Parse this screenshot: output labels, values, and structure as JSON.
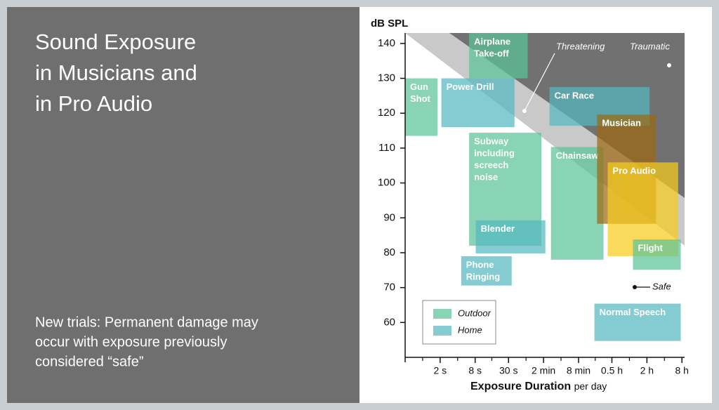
{
  "slide": {
    "title_lines": [
      "Sound Exposure",
      "in Musicians and",
      "in Pro Audio"
    ],
    "note_lines": [
      "New trials: Permanent damage may",
      "occur with exposure previously",
      "considered “safe”"
    ]
  },
  "chart_data": {
    "type": "range",
    "y_label": "dB SPL",
    "x_label": "Exposure Duration",
    "x_label_suffix": "per day",
    "xlim": [
      0.5,
      32000
    ],
    "x_log": true,
    "ylim": [
      50,
      143
    ],
    "yticks": [
      60,
      70,
      80,
      90,
      100,
      110,
      120,
      130,
      140
    ],
    "xticks": [
      {
        "value": 2,
        "label": "2 s"
      },
      {
        "value": 8,
        "label": "8 s"
      },
      {
        "value": 30,
        "label": "30 s"
      },
      {
        "value": 120,
        "label": "2 min"
      },
      {
        "value": 480,
        "label": "8 min"
      },
      {
        "value": 1800,
        "label": "0.5 h"
      },
      {
        "value": 7200,
        "label": "2 h"
      },
      {
        "value": 28800,
        "label": "8 h"
      }
    ],
    "groups": [
      {
        "name": "Outdoor",
        "color": "#5cc497"
      },
      {
        "name": "Home",
        "color": "#55b9bf"
      }
    ],
    "legend": "lower-left",
    "annotations": {
      "threatening": "Threatening",
      "traumatic": "Traumatic",
      "safe": "Safe"
    },
    "boxes": [
      {
        "label": [
          "Gun",
          "Shot"
        ],
        "group": 0,
        "x": [
          0.5,
          1.8
        ],
        "y": [
          113.5,
          130
        ]
      },
      {
        "label": [
          "Airplane",
          "Take-off"
        ],
        "group": 0,
        "x": [
          6.3,
          64
        ],
        "y": [
          130,
          143
        ]
      },
      {
        "label": [
          "Power Drill"
        ],
        "group": 1,
        "x": [
          2.1,
          38
        ],
        "y": [
          116,
          130
        ]
      },
      {
        "label": [
          "Subway",
          "including",
          "screech",
          "noise"
        ],
        "group": 0,
        "x": [
          6.3,
          110
        ],
        "y": [
          82,
          114.4
        ]
      },
      {
        "label": [
          "Blender"
        ],
        "group": 1,
        "x": [
          8.2,
          129
        ],
        "y": [
          79.8,
          89.3
        ]
      },
      {
        "label": [
          "Phone",
          "Ringing"
        ],
        "group": 1,
        "x": [
          4.6,
          34
        ],
        "y": [
          70.6,
          79
        ]
      },
      {
        "label": [
          "Car Race"
        ],
        "group": 1,
        "x": [
          152,
          8000
        ],
        "y": [
          116.4,
          127.5
        ]
      },
      {
        "label": [
          "Chainsaw"
        ],
        "group": 0,
        "x": [
          161,
          1290
        ],
        "y": [
          78,
          110.3
        ]
      },
      {
        "label": [
          "Musician"
        ],
        "color": "#9c6a12",
        "x": [
          1000,
          10300
        ],
        "y": [
          88.3,
          119.6
        ]
      },
      {
        "label": [
          "Pro Audio"
        ],
        "color": "#f7cc1c",
        "x": [
          1520,
          24800
        ],
        "y": [
          79,
          105.9
        ]
      },
      {
        "label": [
          "Flight"
        ],
        "group": 0,
        "x": [
          4140,
          27500
        ],
        "y": [
          75.1,
          83.8
        ]
      },
      {
        "label": [
          "Normal Speech"
        ],
        "group": 1,
        "x": [
          900,
          27500
        ],
        "y": [
          54.7,
          65.4
        ]
      }
    ]
  }
}
